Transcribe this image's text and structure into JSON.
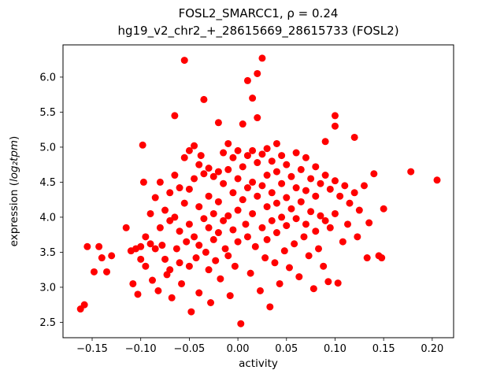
{
  "figure": {
    "background": "#ffffff",
    "title_line1": "FOSL2_SMARCC1, ρ = 0.24",
    "title_line2": "hg19_v2_chr2_+_28615669_28615733 (FOSL2)",
    "xlabel": "activity",
    "ylabel_prefix": "expression (",
    "ylabel_math": "log₂tpm",
    "ylabel_suffix": ")"
  },
  "chart_data": {
    "type": "scatter",
    "title": "FOSL2_SMARCC1, ρ = 0.24\nhg19_v2_chr2_+_28615669_28615733 (FOSL2)",
    "xlabel": "activity",
    "ylabel": "expression (log₂tpm)",
    "legend": "none",
    "grid": false,
    "marker_color": "#ff0000",
    "marker_radius": 4.5,
    "xlim": [
      -0.18,
      0.222
    ],
    "ylim": [
      2.28,
      6.46
    ],
    "x_ticks": [
      -0.15,
      -0.1,
      -0.05,
      0.0,
      0.05,
      0.1,
      0.15,
      0.2
    ],
    "x_tick_labels": [
      "−0.15",
      "−0.10",
      "−0.05",
      "0.00",
      "0.05",
      "0.10",
      "0.15",
      "0.20"
    ],
    "y_ticks": [
      2.5,
      3.0,
      3.5,
      4.0,
      4.5,
      5.0,
      5.5,
      6.0
    ],
    "y_tick_labels": [
      "2.5",
      "3.0",
      "3.5",
      "4.0",
      "4.5",
      "5.0",
      "5.5",
      "6.0"
    ],
    "points": [
      [
        -0.162,
        2.69
      ],
      [
        -0.158,
        2.75
      ],
      [
        -0.155,
        3.58
      ],
      [
        -0.148,
        3.22
      ],
      [
        -0.143,
        3.58
      ],
      [
        -0.14,
        3.42
      ],
      [
        -0.135,
        3.22
      ],
      [
        -0.13,
        3.45
      ],
      [
        -0.115,
        3.85
      ],
      [
        -0.11,
        3.52
      ],
      [
        -0.108,
        3.05
      ],
      [
        -0.105,
        3.55
      ],
      [
        -0.103,
        2.9
      ],
      [
        -0.1,
        3.58
      ],
      [
        -0.1,
        3.4
      ],
      [
        -0.098,
        5.03
      ],
      [
        -0.097,
        4.5
      ],
      [
        -0.095,
        3.72
      ],
      [
        -0.095,
        3.3
      ],
      [
        -0.09,
        4.05
      ],
      [
        -0.09,
        3.62
      ],
      [
        -0.088,
        3.1
      ],
      [
        -0.085,
        4.28
      ],
      [
        -0.085,
        3.55
      ],
      [
        -0.082,
        2.95
      ],
      [
        -0.08,
        4.5
      ],
      [
        -0.08,
        3.85
      ],
      [
        -0.078,
        3.6
      ],
      [
        -0.075,
        4.1
      ],
      [
        -0.075,
        3.4
      ],
      [
        -0.073,
        3.18
      ],
      [
        -0.07,
        4.35
      ],
      [
        -0.07,
        3.95
      ],
      [
        -0.07,
        3.25
      ],
      [
        -0.068,
        2.85
      ],
      [
        -0.065,
        5.45
      ],
      [
        -0.065,
        4.6
      ],
      [
        -0.065,
        4.0
      ],
      [
        -0.063,
        3.55
      ],
      [
        -0.06,
        4.42
      ],
      [
        -0.06,
        3.8
      ],
      [
        -0.06,
        3.35
      ],
      [
        -0.058,
        3.05
      ],
      [
        -0.055,
        6.24
      ],
      [
        -0.055,
        4.85
      ],
      [
        -0.055,
        4.2
      ],
      [
        -0.053,
        3.65
      ],
      [
        -0.05,
        4.95
      ],
      [
        -0.05,
        4.4
      ],
      [
        -0.05,
        3.9
      ],
      [
        -0.05,
        3.3
      ],
      [
        -0.048,
        2.65
      ],
      [
        -0.045,
        5.02
      ],
      [
        -0.045,
        4.55
      ],
      [
        -0.045,
        3.72
      ],
      [
        -0.043,
        3.42
      ],
      [
        -0.04,
        4.75
      ],
      [
        -0.04,
        4.15
      ],
      [
        -0.04,
        3.6
      ],
      [
        -0.04,
        2.92
      ],
      [
        -0.038,
        4.88
      ],
      [
        -0.035,
        5.68
      ],
      [
        -0.035,
        4.62
      ],
      [
        -0.035,
        3.98
      ],
      [
        -0.033,
        3.5
      ],
      [
        -0.03,
        4.7
      ],
      [
        -0.03,
        4.3
      ],
      [
        -0.03,
        3.85
      ],
      [
        -0.03,
        3.25
      ],
      [
        -0.028,
        2.78
      ],
      [
        -0.025,
        4.58
      ],
      [
        -0.025,
        4.05
      ],
      [
        -0.025,
        3.68
      ],
      [
        -0.023,
        3.38
      ],
      [
        -0.02,
        5.35
      ],
      [
        -0.02,
        4.65
      ],
      [
        -0.02,
        4.22
      ],
      [
        -0.02,
        3.78
      ],
      [
        -0.018,
        3.12
      ],
      [
        -0.015,
        4.92
      ],
      [
        -0.015,
        4.48
      ],
      [
        -0.015,
        3.95
      ],
      [
        -0.013,
        3.55
      ],
      [
        -0.01,
        5.05
      ],
      [
        -0.01,
        4.68
      ],
      [
        -0.01,
        4.02
      ],
      [
        -0.01,
        3.45
      ],
      [
        -0.008,
        2.88
      ],
      [
        -0.005,
        4.85
      ],
      [
        -0.005,
        4.35
      ],
      [
        -0.005,
        3.82
      ],
      [
        -0.003,
        3.3
      ],
      [
        0.0,
        4.95
      ],
      [
        0.0,
        4.55
      ],
      [
        0.0,
        4.1
      ],
      [
        0.0,
        3.65
      ],
      [
        0.003,
        2.48
      ],
      [
        0.005,
        5.33
      ],
      [
        0.005,
        4.72
      ],
      [
        0.005,
        4.25
      ],
      [
        0.008,
        3.9
      ],
      [
        0.01,
        5.95
      ],
      [
        0.01,
        4.88
      ],
      [
        0.01,
        4.42
      ],
      [
        0.01,
        3.72
      ],
      [
        0.013,
        3.2
      ],
      [
        0.015,
        5.7
      ],
      [
        0.015,
        4.95
      ],
      [
        0.015,
        4.5
      ],
      [
        0.015,
        4.05
      ],
      [
        0.018,
        3.58
      ],
      [
        0.02,
        6.05
      ],
      [
        0.02,
        5.42
      ],
      [
        0.02,
        4.78
      ],
      [
        0.02,
        4.3
      ],
      [
        0.023,
        2.95
      ],
      [
        0.025,
        6.27
      ],
      [
        0.025,
        4.9
      ],
      [
        0.025,
        4.45
      ],
      [
        0.025,
        3.85
      ],
      [
        0.028,
        3.42
      ],
      [
        0.03,
        4.98
      ],
      [
        0.03,
        4.6
      ],
      [
        0.03,
        4.15
      ],
      [
        0.03,
        3.68
      ],
      [
        0.033,
        2.72
      ],
      [
        0.035,
        4.8
      ],
      [
        0.035,
        4.35
      ],
      [
        0.035,
        3.95
      ],
      [
        0.038,
        3.35
      ],
      [
        0.04,
        5.05
      ],
      [
        0.04,
        4.65
      ],
      [
        0.04,
        4.2
      ],
      [
        0.04,
        3.78
      ],
      [
        0.043,
        3.05
      ],
      [
        0.045,
        4.88
      ],
      [
        0.045,
        4.48
      ],
      [
        0.045,
        4.0
      ],
      [
        0.048,
        3.52
      ],
      [
        0.05,
        4.75
      ],
      [
        0.05,
        4.28
      ],
      [
        0.05,
        3.88
      ],
      [
        0.053,
        3.28
      ],
      [
        0.055,
        4.58
      ],
      [
        0.055,
        4.12
      ],
      [
        0.058,
        3.62
      ],
      [
        0.06,
        4.92
      ],
      [
        0.06,
        4.42
      ],
      [
        0.06,
        3.98
      ],
      [
        0.063,
        3.15
      ],
      [
        0.065,
        4.68
      ],
      [
        0.065,
        4.22
      ],
      [
        0.068,
        3.72
      ],
      [
        0.07,
        4.85
      ],
      [
        0.07,
        4.38
      ],
      [
        0.07,
        3.9
      ],
      [
        0.073,
        3.45
      ],
      [
        0.075,
        4.55
      ],
      [
        0.075,
        4.08
      ],
      [
        0.078,
        2.98
      ],
      [
        0.08,
        4.72
      ],
      [
        0.08,
        4.3
      ],
      [
        0.08,
        3.8
      ],
      [
        0.083,
        3.55
      ],
      [
        0.085,
        4.48
      ],
      [
        0.085,
        4.02
      ],
      [
        0.088,
        3.3
      ],
      [
        0.09,
        5.08
      ],
      [
        0.09,
        4.6
      ],
      [
        0.09,
        3.95
      ],
      [
        0.093,
        3.08
      ],
      [
        0.095,
        4.4
      ],
      [
        0.095,
        3.85
      ],
      [
        0.1,
        5.45
      ],
      [
        0.1,
        5.3
      ],
      [
        0.1,
        4.52
      ],
      [
        0.1,
        4.05
      ],
      [
        0.103,
        3.06
      ],
      [
        0.105,
        4.3
      ],
      [
        0.108,
        3.65
      ],
      [
        0.11,
        4.45
      ],
      [
        0.113,
        3.9
      ],
      [
        0.115,
        4.2
      ],
      [
        0.12,
        5.14
      ],
      [
        0.12,
        4.35
      ],
      [
        0.123,
        3.72
      ],
      [
        0.125,
        4.1
      ],
      [
        0.13,
        4.45
      ],
      [
        0.133,
        3.42
      ],
      [
        0.135,
        3.92
      ],
      [
        0.14,
        4.62
      ],
      [
        0.145,
        3.45
      ],
      [
        0.148,
        3.42
      ],
      [
        0.15,
        4.12
      ],
      [
        0.178,
        4.65
      ],
      [
        0.205,
        4.53
      ]
    ]
  }
}
